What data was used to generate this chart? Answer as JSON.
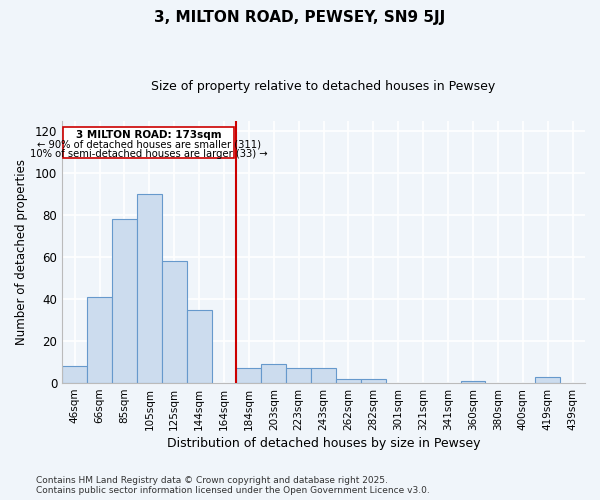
{
  "title": "3, MILTON ROAD, PEWSEY, SN9 5JJ",
  "subtitle": "Size of property relative to detached houses in Pewsey",
  "xlabel": "Distribution of detached houses by size in Pewsey",
  "ylabel": "Number of detached properties",
  "footer_line1": "Contains HM Land Registry data © Crown copyright and database right 2025.",
  "footer_line2": "Contains public sector information licensed under the Open Government Licence v3.0.",
  "categories": [
    "46sqm",
    "66sqm",
    "85sqm",
    "105sqm",
    "125sqm",
    "144sqm",
    "164sqm",
    "184sqm",
    "203sqm",
    "223sqm",
    "243sqm",
    "262sqm",
    "282sqm",
    "301sqm",
    "321sqm",
    "341sqm",
    "360sqm",
    "380sqm",
    "400sqm",
    "419sqm",
    "439sqm"
  ],
  "values": [
    8,
    41,
    78,
    90,
    58,
    35,
    0,
    7,
    9,
    7,
    7,
    2,
    2,
    0,
    0,
    0,
    1,
    0,
    0,
    3,
    0
  ],
  "bar_color": "#ccdcee",
  "bar_edge_color": "#6699cc",
  "property_label": "3 MILTON ROAD: 173sqm",
  "annotation_line1": "← 90% of detached houses are smaller (311)",
  "annotation_line2": "10% of semi-detached houses are larger (33) →",
  "vline_color": "#cc0000",
  "vline_x": 6.5,
  "annotation_box_edge": "#cc0000",
  "ylim": [
    0,
    125
  ],
  "yticks": [
    0,
    20,
    40,
    60,
    80,
    100,
    120
  ],
  "background_color": "#f0f5fa",
  "grid_color": "#ffffff",
  "bar_width": 1.0,
  "figsize": [
    6.0,
    5.0
  ],
  "dpi": 100
}
